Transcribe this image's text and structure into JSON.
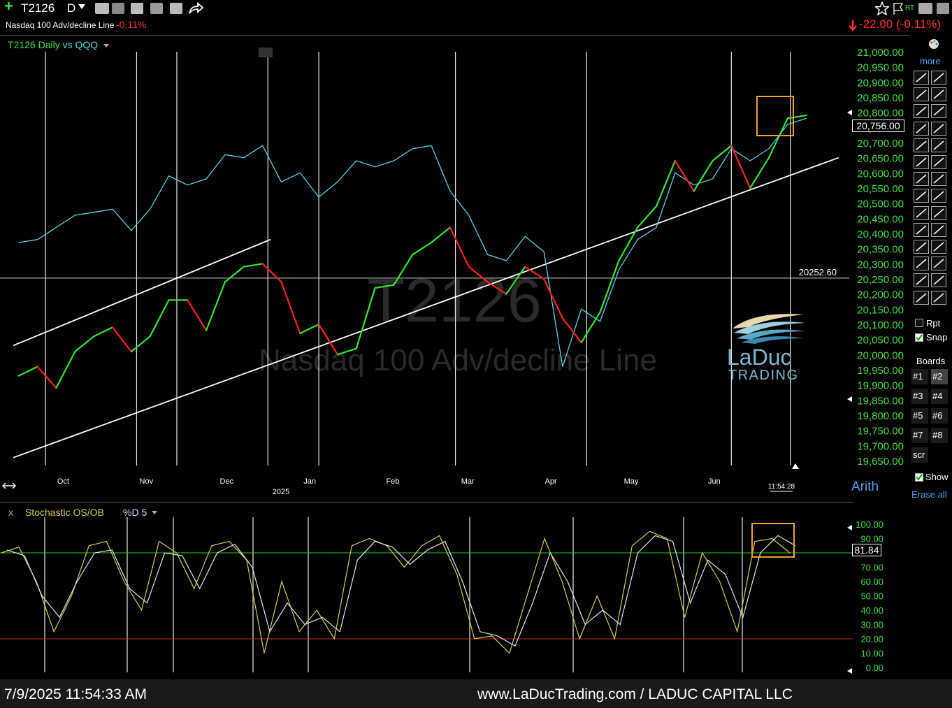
{
  "toolbar": {
    "symbol": "T2126",
    "timeframe": "D",
    "rt_label": "RT"
  },
  "subheader": {
    "indicator_name": "Nasdaq 100 Adv/decline Line",
    "indicator_change": "-0.11%",
    "price_change": "-22.00",
    "price_change_pct": "(-0.11%)"
  },
  "chart_title": {
    "main": "T2126 Daily",
    "vs": "vs",
    "compare": "QQQ"
  },
  "watermark": {
    "symbol": "T2126",
    "name": "Nasdaq 100 Adv/decline Line"
  },
  "logo": {
    "line1": "LaDuc",
    "line2": "TRADING"
  },
  "price_box": "20,756.00",
  "hline_label": "20252.60",
  "time_label": "11:54:28",
  "scale_mode": "Arith",
  "right_panel": {
    "more": "more",
    "rpt": "Rpt",
    "snap": "Snap",
    "boards_title": "Boards",
    "boards": [
      "#1",
      "#2",
      "#3",
      "#4",
      "#5",
      "#6",
      "#7",
      "#8",
      "scr"
    ],
    "show": "Show",
    "erase_all": "Erase all"
  },
  "indicator": {
    "close": "x",
    "name": "Stochastic OS/OB",
    "param": "%D 5",
    "value_box": "81.84"
  },
  "footer": {
    "timestamp": "7/9/2025 11:54:33 AM",
    "site": "www.LaDucTrading.com / LADUC CAPITAL LLC"
  },
  "colors": {
    "up": "#2ee82e",
    "down": "#ff2020",
    "qqq": "#55d4e6",
    "axis_green": "#3be03b",
    "highlight": "#f0a030",
    "stoch_k": "#d8d040",
    "stoch_d": "#e0e8f0",
    "ob_line": "#22cc22",
    "os_line": "#cc2222"
  },
  "chart_data": [
    {
      "type": "line",
      "title": "T2126 Daily vs QQQ",
      "y_ticks": [
        "21,000.00",
        "20,950.00",
        "20,900.00",
        "20,850.00",
        "20,800.00",
        "20,750.00",
        "20,700.00",
        "20,650.00",
        "20,600.00",
        "20,550.00",
        "20,500.00",
        "20,450.00",
        "20,400.00",
        "20,350.00",
        "20,300.00",
        "20,250.00",
        "20,200.00",
        "20,150.00",
        "20,100.00",
        "20,050.00",
        "20,000.00",
        "19,950.00",
        "19,900.00",
        "19,850.00",
        "19,800.00",
        "19,750.00",
        "19,700.00",
        "19,650.00"
      ],
      "x_ticks": [
        "Oct",
        "Nov",
        "Dec",
        "Jan",
        "Feb",
        "Mar",
        "Apr",
        "May",
        "Jun"
      ],
      "x_year_label": "2025",
      "ylim": [
        19650,
        21000
      ],
      "horizontal_line": 20252.6,
      "series": [
        {
          "name": "T2126",
          "x": [
            "2024-09-17",
            "2024-09-24",
            "2024-10-01",
            "2024-10-08",
            "2024-10-15",
            "2024-10-22",
            "2024-10-29",
            "2024-11-05",
            "2024-11-12",
            "2024-11-19",
            "2024-11-26",
            "2024-12-03",
            "2024-12-10",
            "2024-12-17",
            "2024-12-24",
            "2024-12-31",
            "2025-01-07",
            "2025-01-14",
            "2025-01-21",
            "2025-01-28",
            "2025-02-04",
            "2025-02-11",
            "2025-02-18",
            "2025-02-25",
            "2025-03-04",
            "2025-03-11",
            "2025-03-18",
            "2025-03-25",
            "2025-04-01",
            "2025-04-08",
            "2025-04-15",
            "2025-04-22",
            "2025-04-29",
            "2025-05-06",
            "2025-05-13",
            "2025-05-20",
            "2025-05-27",
            "2025-06-03",
            "2025-06-10",
            "2025-06-17",
            "2025-06-24",
            "2025-07-01",
            "2025-07-08"
          ],
          "values": [
            19930,
            19960,
            19890,
            20010,
            20060,
            20090,
            20010,
            20060,
            20180,
            20180,
            20080,
            20240,
            20290,
            20300,
            20240,
            20070,
            20100,
            20000,
            20020,
            20220,
            20230,
            20330,
            20370,
            20420,
            20290,
            20240,
            20200,
            20290,
            20250,
            20120,
            20040,
            20140,
            20310,
            20420,
            20490,
            20640,
            20540,
            20640,
            20690,
            20550,
            20650,
            20780,
            20790
          ]
        },
        {
          "name": "QQQ",
          "x": [
            "2024-09-17",
            "2024-09-24",
            "2024-10-01",
            "2024-10-08",
            "2024-10-15",
            "2024-10-22",
            "2024-10-29",
            "2024-11-05",
            "2024-11-12",
            "2024-11-19",
            "2024-11-26",
            "2024-12-03",
            "2024-12-10",
            "2024-12-17",
            "2024-12-24",
            "2024-12-31",
            "2025-01-07",
            "2025-01-14",
            "2025-01-21",
            "2025-01-28",
            "2025-02-04",
            "2025-02-11",
            "2025-02-18",
            "2025-02-25",
            "2025-03-04",
            "2025-03-11",
            "2025-03-18",
            "2025-03-25",
            "2025-04-01",
            "2025-04-08",
            "2025-04-15",
            "2025-04-22",
            "2025-04-29",
            "2025-05-06",
            "2025-05-13",
            "2025-05-20",
            "2025-05-27",
            "2025-06-03",
            "2025-06-10",
            "2025-06-17",
            "2025-06-24",
            "2025-07-01",
            "2025-07-08"
          ],
          "values": [
            20370,
            20380,
            20420,
            20460,
            20470,
            20480,
            20410,
            20480,
            20590,
            20560,
            20580,
            20660,
            20650,
            20690,
            20570,
            20600,
            20520,
            20570,
            20640,
            20620,
            20640,
            20680,
            20690,
            20540,
            20460,
            20330,
            20310,
            20390,
            20340,
            19960,
            20150,
            20110,
            20280,
            20380,
            20420,
            20600,
            20560,
            20580,
            20680,
            20640,
            20680,
            20760,
            20780
          ]
        }
      ],
      "trendlines": [
        {
          "from": [
            "2024-09-15",
            20030
          ],
          "to": [
            "2024-12-20",
            20380
          ]
        },
        {
          "from": [
            "2024-09-15",
            19660
          ],
          "to": [
            "2025-07-20",
            20650
          ]
        }
      ]
    },
    {
      "type": "line",
      "title": "Stochastic OS/OB %D 5",
      "y_ticks": [
        "100.00",
        "90.00",
        "70.00",
        "60.00",
        "50.00",
        "40.00",
        "30.00",
        "20.00",
        "10.00",
        "0.00"
      ],
      "ylim": [
        0,
        100
      ],
      "levels": [
        80,
        20
      ],
      "series": [
        {
          "name": "%K",
          "values": [
            80,
            84,
            60,
            25,
            50,
            85,
            88,
            60,
            40,
            88,
            80,
            55,
            85,
            88,
            75,
            10,
            60,
            25,
            40,
            20,
            85,
            90,
            85,
            70,
            85,
            92,
            65,
            20,
            22,
            10,
            50,
            90,
            60,
            20,
            50,
            20,
            85,
            95,
            90,
            35,
            80,
            60,
            25,
            88,
            90,
            80
          ]
        },
        {
          "name": "%D",
          "values": [
            82,
            78,
            50,
            35,
            60,
            80,
            82,
            55,
            45,
            80,
            78,
            55,
            80,
            86,
            70,
            25,
            45,
            30,
            35,
            25,
            75,
            88,
            84,
            72,
            82,
            88,
            60,
            25,
            22,
            15,
            45,
            80,
            60,
            30,
            40,
            30,
            80,
            92,
            88,
            45,
            75,
            65,
            35,
            80,
            92,
            85
          ]
        }
      ]
    }
  ]
}
